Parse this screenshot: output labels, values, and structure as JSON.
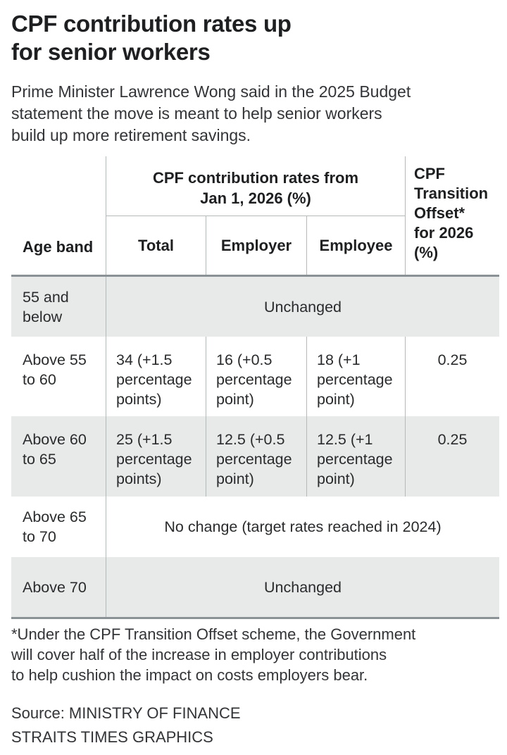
{
  "colors": {
    "text_dark": "#1e1f21",
    "text_body": "#323437",
    "row_shade": "#e8eaea",
    "heavy_rule": "#8b9295",
    "thin_rule": "#b4b9ba",
    "background": "#ffffff"
  },
  "header": {
    "title": "CPF contribution rates up\nfor senior workers",
    "subtitle": "Prime Minister Lawrence Wong said in the 2025 Budget\nstatement the move is meant to help senior workers\nbuild up more retirement savings."
  },
  "table": {
    "age_band_header": "Age band",
    "group_header": "CPF contribution rates from\nJan 1, 2026 (%)",
    "sub_headers": [
      "Total",
      "Employer",
      "Employee"
    ],
    "offset_header": "CPF\nTransition\nOffset*\nfor 2026\n(%)",
    "rows": [
      {
        "age": "55 and\nbelow",
        "span": "Unchanged"
      },
      {
        "age": "Above 55\nto 60",
        "total": "34 (+1.5\npercentage\npoints)",
        "employer": "16 (+0.5\npercentage\npoint)",
        "employee": "18 (+1\npercentage\npoint)",
        "offset": "0.25"
      },
      {
        "age": "Above 60\nto 65",
        "total": "25 (+1.5\npercentage\npoints)",
        "employer": "12.5 (+0.5\npercentage\npoint)",
        "employee": "12.5 (+1\npercentage\npoint)",
        "offset": "0.25"
      },
      {
        "age": "Above 65\nto 70",
        "span": "No change (target rates reached in 2024)"
      },
      {
        "age": "Above 70",
        "span": "Unchanged"
      }
    ]
  },
  "footnote": "*Under the CPF Transition Offset scheme, the Government\nwill cover half of the increase in employer contributions\nto help cushion the impact on costs employers bear.",
  "source": {
    "line1": "Source: MINISTRY OF FINANCE",
    "line2": "STRAITS TIMES GRAPHICS"
  },
  "chart_data": {
    "type": "table",
    "title": "CPF contribution rates up for senior workers",
    "column_group": "CPF contribution rates from Jan 1, 2026 (%)",
    "columns": [
      "Age band",
      "Total",
      "Employer",
      "Employee",
      "CPF Transition Offset* for 2026 (%)"
    ],
    "rows": [
      {
        "age_band": "55 and below",
        "note": "Unchanged"
      },
      {
        "age_band": "Above 55 to 60",
        "total": "34 (+1.5 percentage points)",
        "employer": "16 (+0.5 percentage point)",
        "employee": "18 (+1 percentage point)",
        "offset_2026": 0.25
      },
      {
        "age_band": "Above 60 to 65",
        "total": "25 (+1.5 percentage points)",
        "employer": "12.5 (+0.5 percentage point)",
        "employee": "12.5 (+1 percentage point)",
        "offset_2026": 0.25
      },
      {
        "age_band": "Above 65 to 70",
        "note": "No change (target rates reached in 2024)"
      },
      {
        "age_band": "Above 70",
        "note": "Unchanged"
      }
    ],
    "shaded_row_indexes": [
      0,
      2,
      4
    ],
    "legend_position": "none",
    "grid": "partial-rules"
  }
}
